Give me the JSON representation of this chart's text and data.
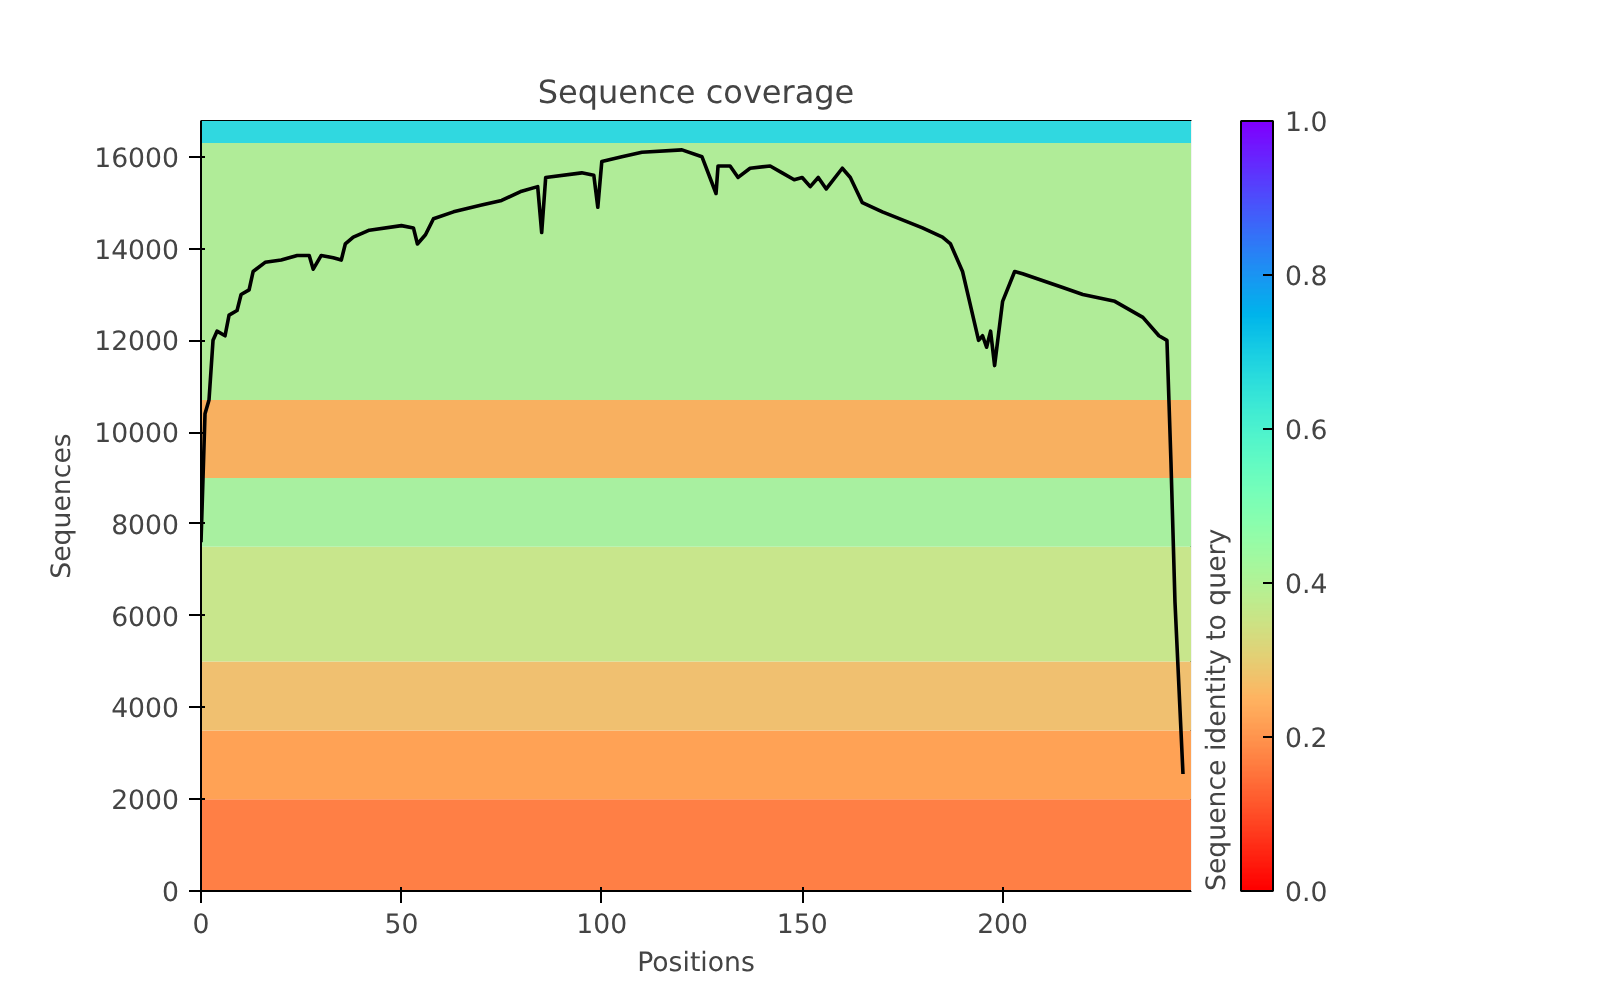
{
  "chart_data": {
    "type": "line",
    "title": "Sequence coverage",
    "xlabel": "Positions",
    "ylabel": "Sequences",
    "clabel": "Sequence identity to query",
    "xlim": [
      0,
      247
    ],
    "ylim": [
      0,
      16780
    ],
    "xticks": [
      0,
      50,
      100,
      150,
      200
    ],
    "yticks": [
      0,
      2000,
      4000,
      6000,
      8000,
      10000,
      12000,
      14000,
      16000
    ],
    "clim": [
      0,
      1
    ],
    "cticks": [
      {
        "value": 0,
        "label": "0.0"
      },
      {
        "value": 0.2,
        "label": "0.2"
      },
      {
        "value": 0.4,
        "label": "0.4"
      },
      {
        "value": 0.6,
        "label": "0.6"
      },
      {
        "value": 0.8,
        "label": "0.8"
      },
      {
        "value": 1,
        "label": "1.0"
      }
    ],
    "grid": false,
    "bands": [
      {
        "axis": "y",
        "from": 0,
        "to": 2000,
        "color": "#ff7f45"
      },
      {
        "axis": "y",
        "from": 2000,
        "to": 3500,
        "color": "#ffa255"
      },
      {
        "axis": "y",
        "from": 3500,
        "to": 5000,
        "color": "#f0c070"
      },
      {
        "axis": "y",
        "from": 5000,
        "to": 7500,
        "color": "#c8e68c"
      },
      {
        "axis": "y",
        "from": 7500,
        "to": 9000,
        "color": "#a8f0a0"
      },
      {
        "axis": "y",
        "from": 9000,
        "to": 10700,
        "color": "#f8b060"
      },
      {
        "axis": "y",
        "from": 10700,
        "to": 16300,
        "color": "#b0ec98"
      },
      {
        "axis": "y",
        "from": 16300,
        "to": 16780,
        "color": "#30d8e0"
      }
    ],
    "series": [
      {
        "color": "#000000",
        "x": [
          0,
          1,
          2,
          3,
          4,
          6,
          7,
          9,
          10,
          12,
          13,
          16,
          20,
          24,
          27,
          28,
          30,
          33,
          35,
          36,
          38,
          42,
          50,
          53,
          54,
          56,
          58,
          63,
          70,
          75,
          80,
          84,
          85,
          86,
          95,
          98,
          99,
          100,
          105,
          110,
          120,
          125,
          128.5,
          129,
          132,
          134,
          137,
          142,
          145,
          148,
          150,
          152,
          154,
          156,
          160,
          162,
          165,
          170,
          180,
          185,
          187,
          190,
          192,
          194,
          195,
          196,
          197,
          198,
          200,
          203,
          205,
          215,
          220,
          228,
          235,
          239,
          241,
          242,
          243,
          245
        ],
        "values": [
          7600,
          10400,
          10700,
          12000,
          12200,
          12100,
          12550,
          12650,
          13000,
          13100,
          13500,
          13700,
          13750,
          13850,
          13850,
          13550,
          13850,
          13800,
          13750,
          14100,
          14250,
          14400,
          14500,
          14450,
          14100,
          14300,
          14650,
          14800,
          14950,
          15050,
          15250,
          15350,
          14350,
          15550,
          15650,
          15600,
          14900,
          15900,
          16000,
          16100,
          16150,
          16000,
          15200,
          15800,
          15800,
          15550,
          15750,
          15800,
          15650,
          15500,
          15550,
          15350,
          15550,
          15300,
          15750,
          15550,
          15000,
          14800,
          14450,
          14250,
          14100,
          13500,
          12750,
          12000,
          12100,
          11850,
          12200,
          11450,
          12850,
          13500,
          13450,
          13150,
          13000,
          12850,
          12500,
          12100,
          12000,
          9350,
          6300,
          2550
        ]
      }
    ]
  }
}
